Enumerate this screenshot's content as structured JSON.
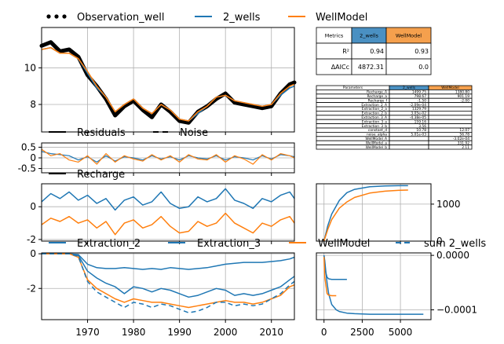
{
  "legend_top": [
    {
      "label": "Observation_well",
      "style": "dots",
      "color": "#000000"
    },
    {
      "label": "2_wells",
      "style": "line",
      "color": "#1f77b4"
    },
    {
      "label": "WellModel",
      "style": "line",
      "color": "#ff7f0e"
    }
  ],
  "legend_residuals": [
    {
      "label": "Residuals",
      "style": "solid"
    },
    {
      "label": "Noise",
      "style": "dashed"
    }
  ],
  "legend_recharge": [
    {
      "label": "Recharge",
      "style": "solid"
    }
  ],
  "legend_extraction": [
    {
      "label": "Extraction_2",
      "style": "solid",
      "color": "#1f77b4"
    },
    {
      "label": "Extraction_3",
      "style": "solid",
      "color": "#1f77b4"
    },
    {
      "label": "WellModel",
      "style": "solid",
      "color": "#ff7f0e"
    },
    {
      "label": "sum 2_wells",
      "style": "dashed",
      "color": "#1f77b4"
    }
  ],
  "metrics_table": {
    "headers": [
      "Metrics",
      "2_wells",
      "WellModel"
    ],
    "rows": [
      [
        "R²",
        "0.94",
        "0.93"
      ],
      [
        "ΔAICc",
        "4872.31",
        "0.0"
      ]
    ]
  },
  "params_table": {
    "headers": [
      "Parameters",
      "2_wells",
      "WellModel"
    ],
    "rows": [
      [
        "Recharge_A",
        "1499.75",
        "1380.80"
      ],
      [
        "Recharge_a",
        "798.67",
        "901.19"
      ],
      [
        "Recharge_f",
        "-1.50",
        "-2.00"
      ],
      [
        "Extraction_2_A",
        "-2.09e-04",
        ""
      ],
      [
        "Extraction_2_a",
        "1329.79",
        ""
      ],
      [
        "Extraction_2_b",
        "3.05e-02",
        ""
      ],
      [
        "Extraction_3_A",
        "-4.38e-05",
        ""
      ],
      [
        "Extraction_3_a",
        "159.16",
        ""
      ],
      [
        "Extraction_3_b",
        "3.56",
        ""
      ],
      [
        "constant_d",
        "10.78",
        "12.07"
      ],
      [
        "noise_alpha",
        "5.01e-03",
        "56.78"
      ],
      [
        "WellModel_A",
        "",
        "-3.02e-04"
      ],
      [
        "WellModel_a",
        "",
        "331.92"
      ],
      [
        "WellModel_b",
        "",
        "2.11"
      ]
    ]
  },
  "colors": {
    "series_a": "#1f77b4",
    "series_b": "#ff7f0e",
    "obs": "#000000",
    "header_a": "#4a90c2",
    "header_b": "#f5a04d",
    "grid": "#b0b0b0"
  },
  "chart_data": [
    {
      "type": "line",
      "panel": "head",
      "x_range": [
        1960,
        2015
      ],
      "ylim": [
        6.5,
        12.2
      ],
      "yticks": [
        8,
        10
      ],
      "x": [
        1960,
        1962,
        1964,
        1966,
        1968,
        1970,
        1972,
        1974,
        1976,
        1978,
        1980,
        1982,
        1984,
        1986,
        1988,
        1990,
        1992,
        1994,
        1996,
        1998,
        2000,
        2002,
        2004,
        2006,
        2008,
        2010,
        2012,
        2014,
        2015
      ],
      "series": [
        {
          "name": "Observation_well",
          "values": [
            11.2,
            11.4,
            10.9,
            11.0,
            10.6,
            9.6,
            9.0,
            8.3,
            7.4,
            7.9,
            8.2,
            7.7,
            7.3,
            8.0,
            7.6,
            7.1,
            7.0,
            7.6,
            7.9,
            8.3,
            8.6,
            8.1,
            8.0,
            7.9,
            7.8,
            7.9,
            8.6,
            9.1,
            9.2
          ]
        },
        {
          "name": "2_wells",
          "values": [
            11.0,
            11.1,
            10.8,
            10.8,
            10.5,
            9.7,
            8.9,
            8.4,
            7.6,
            8.0,
            8.3,
            7.8,
            7.5,
            8.0,
            7.7,
            7.2,
            7.1,
            7.5,
            7.9,
            8.4,
            8.5,
            8.2,
            8.1,
            8.0,
            7.9,
            8.0,
            8.5,
            8.9,
            9.0
          ]
        },
        {
          "name": "WellModel",
          "values": [
            11.0,
            11.1,
            10.8,
            10.8,
            10.5,
            9.8,
            9.0,
            8.4,
            7.6,
            8.0,
            8.3,
            7.8,
            7.5,
            8.0,
            7.7,
            7.2,
            7.1,
            7.6,
            7.9,
            8.4,
            8.5,
            8.2,
            8.1,
            8.0,
            7.9,
            8.0,
            8.6,
            9.0,
            9.1
          ]
        }
      ]
    },
    {
      "type": "line",
      "panel": "residuals",
      "x_range": [
        1960,
        2015
      ],
      "ylim": [
        -0.7,
        0.7
      ],
      "yticks": [
        0.5,
        0.0,
        -0.5
      ],
      "x": [
        1960,
        1962,
        1964,
        1966,
        1968,
        1970,
        1972,
        1974,
        1976,
        1978,
        1980,
        1982,
        1984,
        1986,
        1988,
        1990,
        1992,
        1994,
        1996,
        1998,
        2000,
        2002,
        2004,
        2006,
        2008,
        2010,
        2012,
        2014,
        2015
      ],
      "series": [
        {
          "name": "Residuals",
          "values": [
            0.3,
            0.2,
            0.15,
            0.1,
            -0.1,
            0.05,
            -0.2,
            0.1,
            -0.15,
            0.05,
            0.0,
            -0.1,
            0.1,
            -0.05,
            0.05,
            -0.1,
            0.1,
            0.0,
            -0.05,
            0.1,
            -0.1,
            0.05,
            0.0,
            -0.1,
            0.1,
            -0.05,
            0.15,
            0.1,
            0.05
          ]
        },
        {
          "name": "Noise",
          "values": [
            0.4,
            0.1,
            0.2,
            -0.1,
            -0.2,
            0.1,
            -0.3,
            0.2,
            -0.2,
            0.1,
            -0.05,
            -0.15,
            0.15,
            -0.1,
            0.1,
            -0.2,
            0.15,
            -0.05,
            -0.1,
            0.15,
            -0.2,
            0.1,
            -0.05,
            -0.3,
            0.15,
            -0.1,
            0.2,
            0.1,
            0.0
          ]
        }
      ]
    },
    {
      "type": "line",
      "panel": "recharge",
      "x_range": [
        1960,
        2015
      ],
      "ylim": [
        -2.1,
        1.4
      ],
      "yticks": [
        0,
        -2
      ],
      "x": [
        1960,
        1962,
        1964,
        1966,
        1968,
        1970,
        1972,
        1974,
        1976,
        1978,
        1980,
        1982,
        1984,
        1986,
        1988,
        1990,
        1992,
        1994,
        1996,
        1998,
        2000,
        2002,
        2004,
        2006,
        2008,
        2010,
        2012,
        2014,
        2015
      ],
      "series": [
        {
          "name": "2_wells",
          "values": [
            0.3,
            0.8,
            0.5,
            0.9,
            0.4,
            0.7,
            0.2,
            0.5,
            -0.2,
            0.4,
            0.6,
            0.1,
            0.3,
            0.9,
            0.2,
            -0.1,
            0.0,
            0.6,
            0.3,
            0.5,
            1.1,
            0.4,
            0.2,
            -0.1,
            0.5,
            0.3,
            0.7,
            0.9,
            0.5
          ]
        },
        {
          "name": "WellModel",
          "values": [
            -1.1,
            -0.7,
            -0.9,
            -0.6,
            -1.0,
            -0.8,
            -1.3,
            -0.9,
            -1.7,
            -1.0,
            -0.8,
            -1.3,
            -1.1,
            -0.6,
            -1.2,
            -1.6,
            -1.5,
            -0.9,
            -1.2,
            -1.0,
            -0.4,
            -1.0,
            -1.3,
            -1.6,
            -1.0,
            -1.2,
            -0.8,
            -0.6,
            -1.0
          ]
        }
      ]
    },
    {
      "type": "line",
      "panel": "recharge_response",
      "x_range": [
        -500,
        7000
      ],
      "ylim": [
        0,
        1550
      ],
      "yticks": [
        1000,
        0
      ],
      "x": [
        0,
        250,
        500,
        1000,
        1500,
        2000,
        3000,
        4000,
        5000,
        5500
      ],
      "series": [
        {
          "name": "2_wells",
          "values": [
            0,
            420,
            730,
            1100,
            1310,
            1400,
            1470,
            1490,
            1499,
            1500
          ]
        },
        {
          "name": "WellModel",
          "values": [
            0,
            320,
            580,
            890,
            1060,
            1180,
            1300,
            1350,
            1375,
            1380
          ]
        }
      ]
    },
    {
      "type": "line",
      "panel": "extraction",
      "x_range": [
        1960,
        2015
      ],
      "ylim": [
        -3.8,
        0.05
      ],
      "yticks": [
        0,
        -2
      ],
      "xticks": [
        1970,
        1980,
        1990,
        2000,
        2010
      ],
      "x": [
        1960,
        1962,
        1964,
        1966,
        1968,
        1970,
        1972,
        1974,
        1976,
        1978,
        1980,
        1982,
        1984,
        1986,
        1988,
        1990,
        1992,
        1994,
        1996,
        1998,
        2000,
        2002,
        2004,
        2006,
        2008,
        2010,
        2012,
        2014,
        2015
      ],
      "series": [
        {
          "name": "Extraction_2",
          "values": [
            0,
            0,
            0,
            0,
            -0.05,
            -0.6,
            -0.8,
            -0.85,
            -0.85,
            -0.8,
            -0.85,
            -0.9,
            -0.85,
            -0.9,
            -0.8,
            -0.85,
            -0.9,
            -0.85,
            -0.8,
            -0.7,
            -0.6,
            -0.55,
            -0.5,
            -0.5,
            -0.5,
            -0.45,
            -0.4,
            -0.3,
            -0.2
          ]
        },
        {
          "name": "Extraction_3",
          "values": [
            0,
            0,
            0,
            0,
            -0.1,
            -1.0,
            -1.4,
            -1.7,
            -1.9,
            -2.3,
            -1.9,
            -2.0,
            -2.2,
            -2.0,
            -2.1,
            -2.3,
            -2.5,
            -2.4,
            -2.2,
            -2.0,
            -2.1,
            -2.4,
            -2.3,
            -2.4,
            -2.3,
            -2.1,
            -1.9,
            -1.5,
            -1.3
          ]
        },
        {
          "name": "WellModel",
          "values": [
            0,
            0,
            0,
            0,
            -0.2,
            -1.5,
            -2.0,
            -2.3,
            -2.6,
            -2.8,
            -2.6,
            -2.7,
            -2.8,
            -2.8,
            -2.9,
            -3.0,
            -3.1,
            -3.0,
            -2.9,
            -2.8,
            -2.7,
            -2.8,
            -2.8,
            -2.9,
            -2.8,
            -2.6,
            -2.4,
            -1.9,
            -1.8
          ]
        },
        {
          "name": "sum 2_wells",
          "values": [
            0,
            0,
            0,
            0,
            -0.15,
            -1.6,
            -2.2,
            -2.5,
            -2.8,
            -3.1,
            -2.8,
            -2.9,
            -3.1,
            -2.9,
            -3.0,
            -3.2,
            -3.4,
            -3.3,
            -3.1,
            -2.8,
            -2.8,
            -3.0,
            -2.9,
            -3.0,
            -2.9,
            -2.6,
            -2.3,
            -1.8,
            -1.6
          ]
        }
      ]
    },
    {
      "type": "line",
      "panel": "extraction_response",
      "x_range": [
        -500,
        7000
      ],
      "ylim": [
        -0.000118,
        4.5e-06
      ],
      "yticks": [
        0.0,
        -0.0001
      ],
      "yticklabels": [
        "0.0000",
        "−0.0001"
      ],
      "xticks": [
        0,
        2500,
        5000
      ],
      "x": [
        0,
        50,
        100,
        200,
        300,
        500,
        800,
        1000,
        1500,
        2000,
        3000,
        4000,
        5000,
        6000,
        6500
      ],
      "series": [
        {
          "name": "Extraction_2",
          "values": [
            0,
            -1e-05,
            -2.5e-05,
            -5e-05,
            -7e-05,
            -9e-05,
            -0.0001,
            -0.000103,
            -0.000106,
            -0.000107,
            -0.000108,
            -0.000108,
            -0.000108,
            -0.000108,
            -0.000108
          ]
        },
        {
          "name": "Extraction_3",
          "values": [
            0,
            -1.5e-05,
            -3e-05,
            -4e-05,
            -4.3e-05,
            -4.4e-05,
            -4.4e-05,
            -4.4e-05,
            -4.4e-05,
            null,
            null,
            null,
            null,
            null,
            null
          ]
        },
        {
          "name": "WellModel",
          "values": [
            -3e-06,
            -4e-05,
            -5e-05,
            -7e-05,
            -7.3e-05,
            -7.4e-05,
            -7.4e-05,
            null,
            null,
            null,
            null,
            null,
            null,
            null,
            null
          ]
        }
      ]
    }
  ]
}
